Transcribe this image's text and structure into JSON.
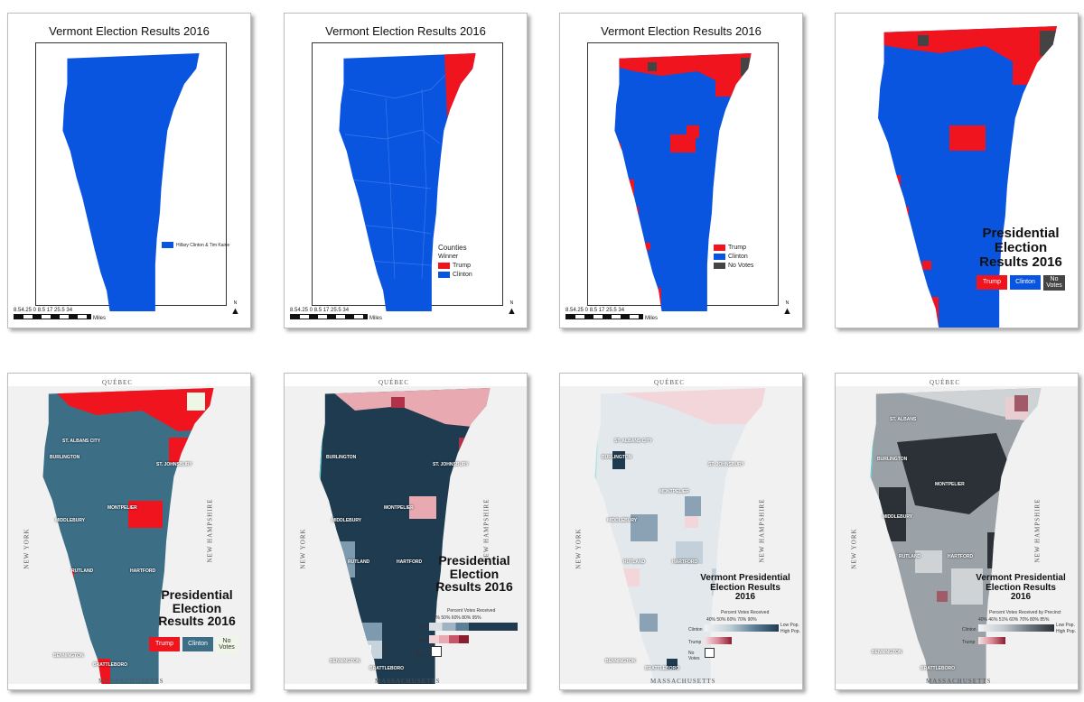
{
  "colors": {
    "clinton": "#0a55e0",
    "trump": "#f0141e",
    "novotes": "#444444",
    "teal": "#3c6e86",
    "water": "#69d2d2"
  },
  "panels": {
    "p1": {
      "title": "Vermont Election Results 2016",
      "legend": "Hillary Clinton & Tim Kaine",
      "scale": "8.54.25 0    8.5    17    25.5    34",
      "scale_unit": "Miles",
      "north": "N"
    },
    "p2": {
      "title": "Vermont Election Results 2016",
      "legend_title": "Counties",
      "legend_sub": "Winner",
      "trump": "Trump",
      "clinton": "Clinton",
      "scale": "8.54.25 0    8.5    17    25.5    34",
      "scale_unit": "Miles",
      "north": "N"
    },
    "p3": {
      "title": "Vermont Election Results 2016",
      "trump": "Trump",
      "clinton": "Clinton",
      "novotes": "No Votes",
      "scale": "8.54.25 0    8.5    17    25.5    34",
      "scale_unit": "Miles",
      "north": "N"
    },
    "p4": {
      "title_l1": "Presidential",
      "title_l2": "Election",
      "title_l3": "Results 2016",
      "trump": "Trump",
      "clinton": "Clinton",
      "novotes": "No Votes"
    },
    "p5": {
      "title_l1": "Presidential",
      "title_l2": "Election",
      "title_l3": "Results 2016",
      "trump": "Trump",
      "clinton": "Clinton",
      "novotes": "No Votes",
      "quebec": "QUÉBEC",
      "mass": "MASSACHUSETTS",
      "ny": "NEW YORK",
      "nh": "NEW HAMPSHIRE",
      "cities": [
        "ST. ALBANS CITY",
        "BURLINGTON",
        "ST. JOHNSBURY",
        "MONTPELIER",
        "MIDDLEBURY",
        "RUTLAND",
        "HARTFORD",
        "BENNINGTON",
        "BRATTLEBORO"
      ]
    },
    "p6": {
      "title_l1": "Presidential",
      "title_l2": "Election",
      "title_l3": "Results 2016",
      "legend_head": "Percent Votes Received",
      "ticks": "40%   50%   60%   80%                    95%",
      "clinton": "Clinton",
      "trump": "Trump",
      "novotes": "No Votes",
      "quebec": "QUÉBEC",
      "mass": "MASSACHUSETTS",
      "ny": "NEW YORK",
      "nh": "NEW HAMPSHIRE",
      "cities": [
        "BURLINGTON",
        "ST. JOHNSBURY",
        "MONTPELIER",
        "MIDDLEBURY",
        "RUTLAND",
        "HARTFORD",
        "BENNINGTON",
        "BRATTLEBORO"
      ]
    },
    "p7": {
      "title_l1": "Vermont Presidential",
      "title_l2": "Election Results",
      "title_l3": "2016",
      "legend_head": "Percent Votes Received",
      "ticks": "40%  50%  60%  70%           90%",
      "clinton": "Clinton",
      "trump": "Trump",
      "novotes": "No Votes",
      "lowpop": "Low Pop.",
      "highpop": "High Pop.",
      "quebec": "QUÉBEC",
      "mass": "MASSACHUSETTS",
      "ny": "NEW YORK",
      "nh": "NEW HAMPSHIRE",
      "cities": [
        "ST. ALBANS CITY",
        "BURLINGTON",
        "ST. JOHNSBURY",
        "MONTPELIER",
        "MIDDLEBURY",
        "RUTLAND",
        "HARTFORD",
        "BENNINGTON",
        "BRATTLEBORO"
      ]
    },
    "p8": {
      "title_l1": "Vermont Presidential",
      "title_l2": "Election Results",
      "title_l3": "2016",
      "legend_head": "Percent Votes Received by Precinct",
      "ticks": "40%  46%  51%  60%  70%  80% 85%",
      "clinton": "Clinton",
      "trump": "Trump",
      "lowpop": "Low Pop.",
      "highpop": "High Pop.",
      "quebec": "QUÉBEC",
      "mass": "MASSACHUSETTS",
      "ny": "NEW YORK",
      "nh": "NEW HAMPSHIRE",
      "cities": [
        "ST. ALBANS",
        "BURLINGTON",
        "MONTPELIER",
        "MIDDLEBURY",
        "RUTLAND",
        "HARTFORD",
        "BENNINGTON",
        "BRATTLEBORO"
      ]
    }
  }
}
